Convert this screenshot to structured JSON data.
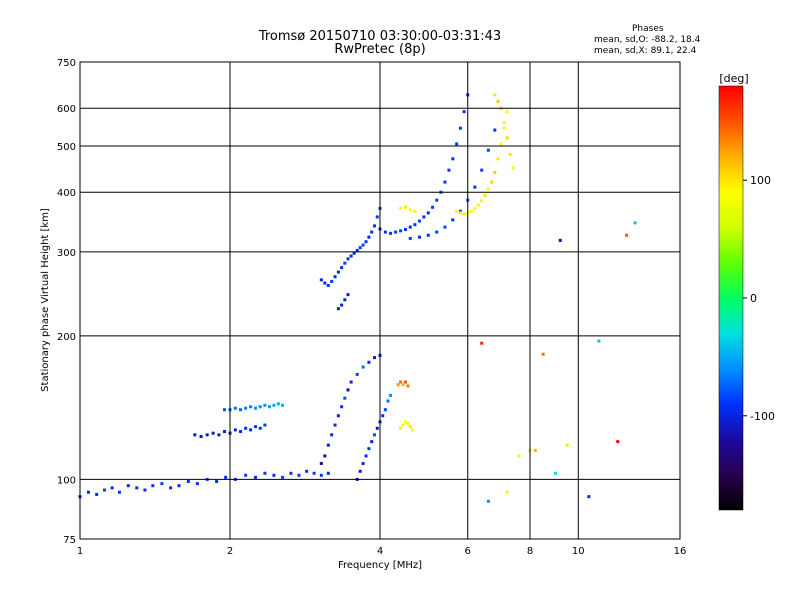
{
  "chart_data": {
    "type": "scatter",
    "title": "Tromsø 20150710 03:30:00-03:31:43",
    "subtitle": "RwPretec (8p)",
    "info": {
      "title": "Phases",
      "line1": "mean, sd,O: -88.2, 18.4",
      "line2": "mean, sd,X: 89.1, 22.4"
    },
    "xlabel": "Frequency [MHz]",
    "ylabel": "Stationary phase Virtual Height [km]",
    "x_scale": "log",
    "y_scale": "log",
    "xlim": [
      1,
      16
    ],
    "ylim": [
      75,
      750
    ],
    "grid": true,
    "x_ticks": [
      {
        "value": 1,
        "label": "1"
      },
      {
        "value": 2,
        "label": "2"
      },
      {
        "value": 4,
        "label": "4"
      },
      {
        "value": 6,
        "label": "6"
      },
      {
        "value": 8,
        "label": "8"
      },
      {
        "value": 10,
        "label": "10"
      },
      {
        "value": 16,
        "label": "16"
      }
    ],
    "y_ticks": [
      {
        "value": 75,
        "label": "75"
      },
      {
        "value": 100,
        "label": "100"
      },
      {
        "value": 200,
        "label": "200"
      },
      {
        "value": 300,
        "label": "300"
      },
      {
        "value": 400,
        "label": "400"
      },
      {
        "value": 500,
        "label": "500"
      },
      {
        "value": 600,
        "label": "600"
      },
      {
        "value": 750,
        "label": "750"
      }
    ],
    "colorbar": {
      "label": "[deg]",
      "range": [
        -180,
        180
      ],
      "ticks": [
        {
          "value": 100,
          "label": "100"
        },
        {
          "value": 0,
          "label": "0"
        },
        {
          "value": -100,
          "label": "-100"
        }
      ],
      "stops": [
        "#000000",
        "#2a0050",
        "#1a0aa0",
        "#0030ff",
        "#0090ff",
        "#00e0e0",
        "#00ff60",
        "#60ff00",
        "#d0ff00",
        "#ffff00",
        "#ffb000",
        "#ff5000",
        "#ff0000"
      ]
    },
    "series": [
      {
        "x": [
          1.0,
          1.04,
          1.08,
          1.12,
          1.16,
          1.2,
          1.25,
          1.3,
          1.35,
          1.4,
          1.46,
          1.52,
          1.58,
          1.65,
          1.72,
          1.8,
          1.88,
          1.96,
          2.05,
          2.15,
          2.25,
          2.35,
          2.45,
          2.55,
          2.65,
          2.75,
          2.85,
          2.95,
          3.05,
          3.15
        ],
        "y": [
          92,
          94,
          93,
          95,
          96,
          94,
          97,
          96,
          95,
          97,
          98,
          96,
          97,
          99,
          98,
          100,
          99,
          101,
          100,
          102,
          101,
          103,
          102,
          101,
          103,
          102,
          104,
          103,
          102,
          103
        ],
        "phase": [
          -98,
          -90,
          -95,
          -85,
          -92,
          -88,
          -100,
          -94,
          -96,
          -90,
          -85,
          -92,
          -97,
          -88,
          -93,
          -86,
          -91,
          -95,
          -89,
          -84,
          -92,
          -87,
          -90,
          -85,
          -93,
          -88,
          -91,
          -86,
          -89,
          -92
        ]
      },
      {
        "x": [
          1.7,
          1.75,
          1.8,
          1.85,
          1.9,
          1.95,
          2.0,
          2.05,
          2.1,
          2.15,
          2.2,
          2.25,
          2.3,
          2.35
        ],
        "y": [
          124,
          123,
          124,
          125,
          124,
          126,
          125,
          127,
          126,
          128,
          127,
          129,
          128,
          130
        ],
        "phase": [
          -110,
          -108,
          -112,
          -105,
          -110,
          -107,
          -102,
          -100,
          -98,
          -95,
          -93,
          -90,
          -88,
          -85
        ]
      },
      {
        "x": [
          1.95,
          2.0,
          2.05,
          2.1,
          2.15,
          2.2,
          2.25,
          2.3,
          2.35,
          2.4,
          2.45,
          2.5,
          2.55
        ],
        "y": [
          140,
          140,
          141,
          140,
          141,
          142,
          141,
          142,
          143,
          142,
          143,
          144,
          143
        ],
        "phase": [
          -80,
          -75,
          -70,
          -72,
          -68,
          -65,
          -62,
          -60,
          -58,
          -55,
          -52,
          -50,
          -48
        ]
      },
      {
        "x": [
          3.05,
          3.1,
          3.15,
          3.2,
          3.25,
          3.3,
          3.35,
          3.4,
          3.45,
          3.5,
          3.6,
          3.7,
          3.8,
          3.9,
          4.0
        ],
        "y": [
          108,
          112,
          118,
          124,
          130,
          136,
          142,
          148,
          154,
          160,
          166,
          172,
          176,
          180,
          182
        ],
        "phase": [
          -125,
          -120,
          -110,
          -100,
          -95,
          -105,
          -90,
          -80,
          -115,
          -100,
          -85,
          -70,
          -95,
          -110,
          -100
        ]
      },
      {
        "x": [
          3.6,
          3.65,
          3.7,
          3.75,
          3.8,
          3.85,
          3.9,
          3.95,
          4.0,
          4.05,
          4.1,
          4.15,
          4.2
        ],
        "y": [
          100,
          104,
          108,
          112,
          116,
          120,
          124,
          128,
          132,
          136,
          140,
          146,
          150
        ],
        "phase": [
          -120,
          -110,
          -100,
          -95,
          -90,
          -105,
          -80,
          -115,
          -100,
          -92,
          -85,
          -70,
          -60
        ]
      },
      {
        "x": [
          4.4,
          4.45,
          4.5,
          4.55,
          4.6,
          4.65
        ],
        "y": [
          128,
          130,
          132,
          131,
          129,
          127
        ],
        "phase": [
          80,
          85,
          90,
          95,
          100,
          88
        ]
      },
      {
        "x": [
          4.35,
          4.4,
          4.45,
          4.5,
          4.55
        ],
        "y": [
          158,
          160,
          158,
          160,
          157
        ],
        "phase": [
          130,
          140,
          120,
          150,
          135
        ]
      },
      {
        "x": [
          3.05,
          3.1,
          3.15,
          3.2,
          3.25,
          3.3,
          3.35,
          3.4,
          3.45,
          3.5,
          3.55,
          3.6,
          3.65,
          3.7,
          3.75,
          3.8,
          3.85,
          3.9,
          3.95,
          4.0
        ],
        "y": [
          262,
          258,
          255,
          260,
          266,
          272,
          278,
          284,
          290,
          294,
          298,
          302,
          306,
          310,
          315,
          322,
          330,
          340,
          355,
          370
        ],
        "phase": [
          -100,
          -95,
          -90,
          -88,
          -92,
          -96,
          -90,
          -85,
          -88,
          -92,
          -95,
          -90,
          -86,
          -84,
          -88,
          -92,
          -95,
          -90,
          -88,
          -85
        ]
      },
      {
        "x": [
          3.3,
          3.35,
          3.4,
          3.45
        ],
        "y": [
          228,
          232,
          238,
          244
        ],
        "phase": [
          -105,
          -100,
          -98,
          -102
        ]
      },
      {
        "x": [
          4.0,
          4.1,
          4.2,
          4.3,
          4.4,
          4.5,
          4.6,
          4.7,
          4.8,
          4.9,
          5.0,
          5.1,
          5.2,
          5.3,
          5.4,
          5.5,
          5.6,
          5.7,
          5.8,
          5.9,
          6.0
        ],
        "y": [
          335,
          330,
          328,
          330,
          332,
          334,
          338,
          342,
          348,
          355,
          362,
          372,
          385,
          400,
          420,
          445,
          470,
          505,
          545,
          590,
          640
        ],
        "phase": [
          -95,
          -92,
          -90,
          -88,
          -86,
          -90,
          -92,
          -88,
          -85,
          -90,
          -92,
          -88,
          -86,
          -84,
          -88,
          -90,
          -92,
          -88,
          -86,
          -90,
          -92
        ]
      },
      {
        "x": [
          4.6,
          4.8,
          5.0,
          5.2,
          5.4,
          5.6,
          5.8,
          6.0,
          6.2,
          6.4,
          6.6,
          6.8,
          7.0
        ],
        "y": [
          320,
          322,
          325,
          330,
          338,
          350,
          365,
          385,
          410,
          445,
          490,
          540,
          600
        ],
        "phase": [
          -88,
          -90,
          -92,
          -86,
          -84,
          -90,
          -88,
          -85,
          -92,
          -88,
          -86,
          -90,
          -84
        ]
      },
      {
        "x": [
          5.7,
          5.8,
          5.9,
          6.0,
          6.1,
          6.2,
          6.3,
          6.4,
          6.5,
          6.6,
          6.7,
          6.8,
          6.9,
          7.0,
          7.1,
          7.2
        ],
        "y": [
          365,
          362,
          360,
          362,
          365,
          370,
          376,
          384,
          394,
          406,
          420,
          440,
          470,
          505,
          545,
          590
        ],
        "phase": [
          90,
          95,
          100,
          88,
          92,
          85,
          80,
          95,
          100,
          90,
          105,
          110,
          98,
          92,
          86,
          80
        ]
      },
      {
        "x": [
          4.4,
          4.5,
          4.6,
          4.7
        ],
        "y": [
          370,
          372,
          368,
          365
        ],
        "phase": [
          95,
          100,
          90,
          85
        ]
      },
      {
        "x": [
          6.8,
          6.9,
          7.0,
          7.1,
          7.2,
          7.3,
          7.4
        ],
        "y": [
          640,
          620,
          600,
          560,
          520,
          480,
          450
        ],
        "phase": [
          100,
          110,
          90,
          95,
          105,
          100,
          92
        ]
      },
      {
        "x": [
          8.2,
          9.0,
          9.5,
          10.5,
          11.0,
          12.0,
          12.5,
          13.0,
          8.5,
          9.2,
          6.4,
          6.6,
          7.2,
          7.6,
          8.0
        ],
        "y": [
          115,
          103,
          118,
          92,
          195,
          120,
          325,
          345,
          183,
          317,
          193,
          90,
          94,
          112,
          115
        ],
        "phase": [
          120,
          -30,
          60,
          -100,
          -40,
          180,
          150,
          -40,
          140,
          -120,
          170,
          -60,
          80,
          90,
          100
        ]
      }
    ]
  }
}
